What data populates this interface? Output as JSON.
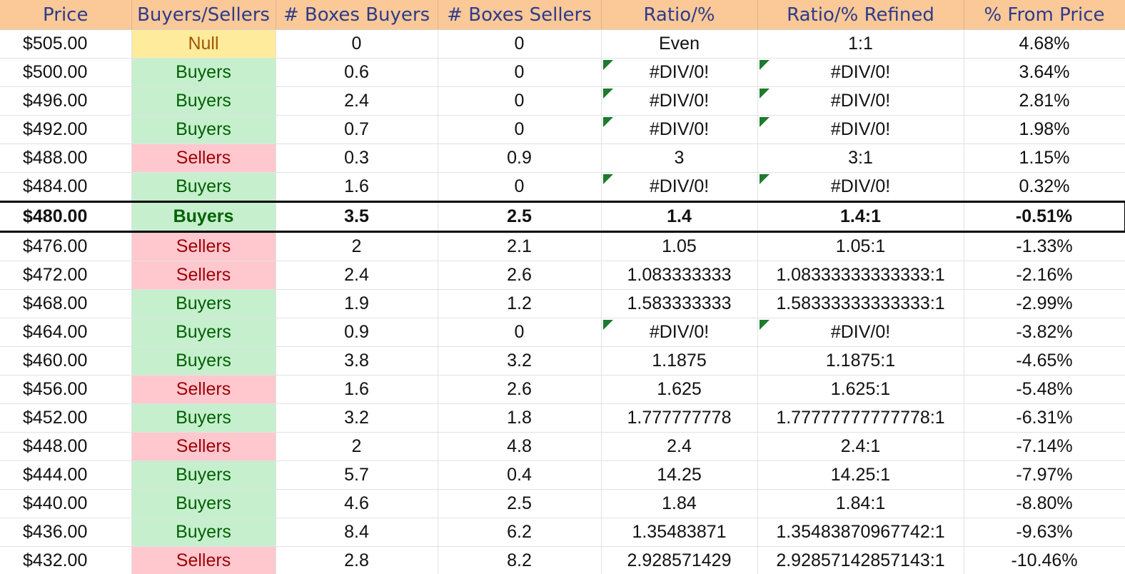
{
  "columns": [
    "Price",
    "Buyers/Sellers",
    "# Boxes Buyers",
    "# Boxes Sellers",
    "Ratio/%",
    "Ratio/% Refined",
    "% From Price"
  ],
  "status_colors": {
    "null_bg": "#ffeb9c",
    "null_text": "#9c5700",
    "buyers_bg": "#c6efce",
    "buyers_text": "#006100",
    "sellers_bg": "#ffc7ce",
    "sellers_text": "#9c0006",
    "header_bg": "#fbc997",
    "header_text": "#2e3b8c",
    "error_flag": "#1e7a2e"
  },
  "rows": [
    {
      "price": "$505.00",
      "side": "Null",
      "buyers": "0",
      "sellers": "0",
      "ratio": "Even",
      "refined": "1:1",
      "from_price": "4.68%",
      "error": false,
      "current": false
    },
    {
      "price": "$500.00",
      "side": "Buyers",
      "buyers": "0.6",
      "sellers": "0",
      "ratio": "#DIV/0!",
      "refined": "#DIV/0!",
      "from_price": "3.64%",
      "error": true,
      "current": false
    },
    {
      "price": "$496.00",
      "side": "Buyers",
      "buyers": "2.4",
      "sellers": "0",
      "ratio": "#DIV/0!",
      "refined": "#DIV/0!",
      "from_price": "2.81%",
      "error": true,
      "current": false
    },
    {
      "price": "$492.00",
      "side": "Buyers",
      "buyers": "0.7",
      "sellers": "0",
      "ratio": "#DIV/0!",
      "refined": "#DIV/0!",
      "from_price": "1.98%",
      "error": true,
      "current": false
    },
    {
      "price": "$488.00",
      "side": "Sellers",
      "buyers": "0.3",
      "sellers": "0.9",
      "ratio": "3",
      "refined": "3:1",
      "from_price": "1.15%",
      "error": false,
      "current": false
    },
    {
      "price": "$484.00",
      "side": "Buyers",
      "buyers": "1.6",
      "sellers": "0",
      "ratio": "#DIV/0!",
      "refined": "#DIV/0!",
      "from_price": "0.32%",
      "error": true,
      "current": false
    },
    {
      "price": "$480.00",
      "side": "Buyers",
      "buyers": "3.5",
      "sellers": "2.5",
      "ratio": "1.4",
      "refined": "1.4:1",
      "from_price": "-0.51%",
      "error": false,
      "current": true
    },
    {
      "price": "$476.00",
      "side": "Sellers",
      "buyers": "2",
      "sellers": "2.1",
      "ratio": "1.05",
      "refined": "1.05:1",
      "from_price": "-1.33%",
      "error": false,
      "current": false
    },
    {
      "price": "$472.00",
      "side": "Sellers",
      "buyers": "2.4",
      "sellers": "2.6",
      "ratio": "1.083333333",
      "refined": "1.08333333333333:1",
      "from_price": "-2.16%",
      "error": false,
      "current": false
    },
    {
      "price": "$468.00",
      "side": "Buyers",
      "buyers": "1.9",
      "sellers": "1.2",
      "ratio": "1.583333333",
      "refined": "1.58333333333333:1",
      "from_price": "-2.99%",
      "error": false,
      "current": false
    },
    {
      "price": "$464.00",
      "side": "Buyers",
      "buyers": "0.9",
      "sellers": "0",
      "ratio": "#DIV/0!",
      "refined": "#DIV/0!",
      "from_price": "-3.82%",
      "error": true,
      "current": false
    },
    {
      "price": "$460.00",
      "side": "Buyers",
      "buyers": "3.8",
      "sellers": "3.2",
      "ratio": "1.1875",
      "refined": "1.1875:1",
      "from_price": "-4.65%",
      "error": false,
      "current": false
    },
    {
      "price": "$456.00",
      "side": "Sellers",
      "buyers": "1.6",
      "sellers": "2.6",
      "ratio": "1.625",
      "refined": "1.625:1",
      "from_price": "-5.48%",
      "error": false,
      "current": false
    },
    {
      "price": "$452.00",
      "side": "Buyers",
      "buyers": "3.2",
      "sellers": "1.8",
      "ratio": "1.777777778",
      "refined": "1.77777777777778:1",
      "from_price": "-6.31%",
      "error": false,
      "current": false
    },
    {
      "price": "$448.00",
      "side": "Sellers",
      "buyers": "2",
      "sellers": "4.8",
      "ratio": "2.4",
      "refined": "2.4:1",
      "from_price": "-7.14%",
      "error": false,
      "current": false
    },
    {
      "price": "$444.00",
      "side": "Buyers",
      "buyers": "5.7",
      "sellers": "0.4",
      "ratio": "14.25",
      "refined": "14.25:1",
      "from_price": "-7.97%",
      "error": false,
      "current": false
    },
    {
      "price": "$440.00",
      "side": "Buyers",
      "buyers": "4.6",
      "sellers": "2.5",
      "ratio": "1.84",
      "refined": "1.84:1",
      "from_price": "-8.80%",
      "error": false,
      "current": false
    },
    {
      "price": "$436.00",
      "side": "Buyers",
      "buyers": "8.4",
      "sellers": "6.2",
      "ratio": "1.35483871",
      "refined": "1.35483870967742:1",
      "from_price": "-9.63%",
      "error": false,
      "current": false
    },
    {
      "price": "$432.00",
      "side": "Sellers",
      "buyers": "2.8",
      "sellers": "8.2",
      "ratio": "2.928571429",
      "refined": "2.92857142857143:1",
      "from_price": "-10.46%",
      "error": false,
      "current": false
    }
  ]
}
